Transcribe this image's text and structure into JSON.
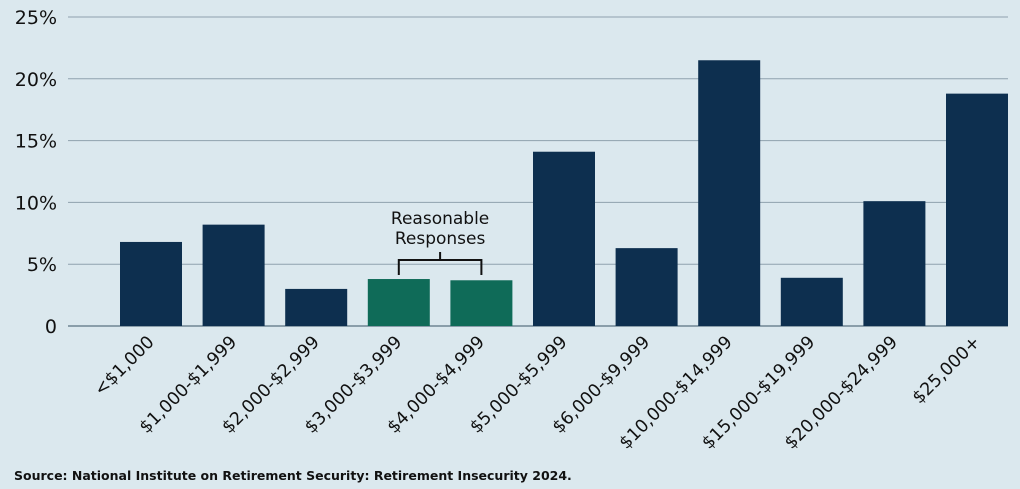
{
  "chart_data": {
    "type": "bar",
    "categories": [
      "<$1,000",
      "$1,000-$1,999",
      "$2,000-$2,999",
      "$3,000-$3,999",
      "$4,000-$4,999",
      "$5,000-$5,999",
      "$6,000-$9,999",
      "$10,000-$14,999",
      "$15,000-$19,999",
      "$20,000-$24,999",
      "$25,000+"
    ],
    "values": [
      6.8,
      8.2,
      3.0,
      3.8,
      3.7,
      14.1,
      6.3,
      21.5,
      3.9,
      10.1,
      18.8
    ],
    "highlighted": [
      false,
      false,
      false,
      true,
      true,
      false,
      false,
      false,
      false,
      false,
      false
    ],
    "y_ticks": [
      0,
      5,
      10,
      15,
      20,
      25
    ],
    "y_tick_labels": [
      "0",
      "5%",
      "10%",
      "15%",
      "20%",
      "25%"
    ],
    "ylim": [
      0,
      25
    ],
    "grid": true,
    "title": "",
    "xlabel": "",
    "ylabel": "",
    "annotation": {
      "lines": [
        "Reasonable",
        "Responses"
      ],
      "spans_categories": [
        "$3,000-$3,999",
        "$4,000-$4,999"
      ]
    },
    "colors": {
      "bar": "#0d2f4f",
      "highlight": "#0f6b58",
      "grid": "#8fa1ad",
      "background": "#dbe8ee"
    }
  },
  "source": "Source: National Institute on Retirement Security: Retirement Insecurity 2024."
}
